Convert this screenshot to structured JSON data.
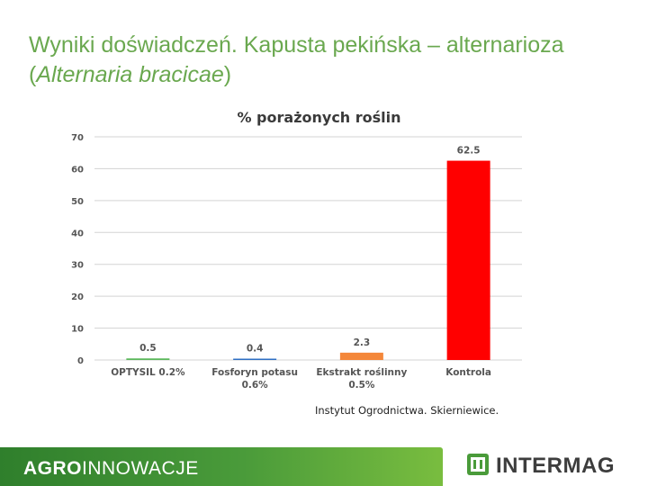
{
  "slide": {
    "title_line1": "Wyniki doświadczeń. Kapusta pekińska – alternarioza",
    "title_open": "(",
    "title_latin": "Alternaria bracicae",
    "title_close": ")",
    "source": "Instytut Ogrodnictwa. Skierniewice."
  },
  "footer": {
    "brand_bold": "AGRO",
    "brand_light": "INNOWACJE",
    "logo_text": "INTERMAG"
  },
  "colors": {
    "title": "#6aa84f",
    "grid": "#d3d3d3",
    "footer_green": "#4a9b3a"
  },
  "chart_data": {
    "type": "bar",
    "title": "% porażonych roślin",
    "categories": [
      [
        "OPTYSIL 0.2%"
      ],
      [
        "Fosforyn potasu",
        "0.6%"
      ],
      [
        "Ekstrakt roślinny",
        "0.5%"
      ],
      [
        "Kontrola"
      ]
    ],
    "values": [
      0.5,
      0.4,
      2.3,
      62.5
    ],
    "value_labels": [
      "0.5",
      "0.4",
      "2.3",
      "62.5"
    ],
    "bar_colors": [
      "#5cb85c",
      "#2e6fc4",
      "#f4873a",
      "#ff0000"
    ],
    "ylim": [
      0,
      70
    ],
    "yticks": [
      0,
      10,
      20,
      30,
      40,
      50,
      60,
      70
    ],
    "grid": true,
    "legend": "none"
  }
}
